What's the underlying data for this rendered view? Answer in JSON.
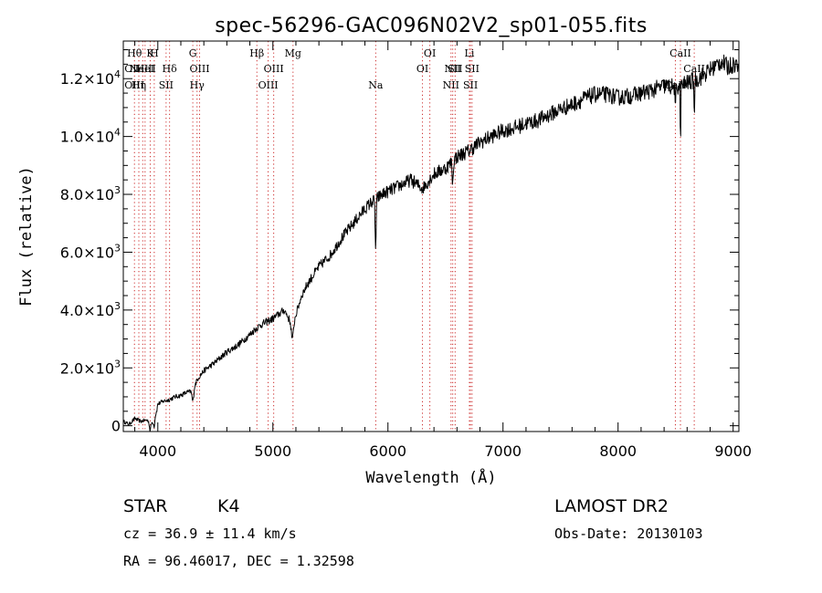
{
  "chart_data": {
    "type": "line",
    "title": "spec-56296-GAC096N02V2_sp01-055.fits",
    "xlabel": "Wavelength (Å)",
    "ylabel": "Flux (relative)",
    "xlim": [
      3700,
      9050
    ],
    "ylim": [
      -200,
      13300
    ],
    "x_ticks": [
      {
        "value": 4000,
        "label": "4000"
      },
      {
        "value": 5000,
        "label": "5000"
      },
      {
        "value": 6000,
        "label": "6000"
      },
      {
        "value": 7000,
        "label": "7000"
      },
      {
        "value": 8000,
        "label": "8000"
      },
      {
        "value": 9000,
        "label": "9000"
      }
    ],
    "y_ticks": [
      {
        "value": 0,
        "mant": "0",
        "exp": ""
      },
      {
        "value": 2000,
        "mant": "2.0×10",
        "exp": "3"
      },
      {
        "value": 4000,
        "mant": "4.0×10",
        "exp": "3"
      },
      {
        "value": 6000,
        "mant": "6.0×10",
        "exp": "3"
      },
      {
        "value": 8000,
        "mant": "8.0×10",
        "exp": "3"
      },
      {
        "value": 10000,
        "mant": "1.0×10",
        "exp": "4"
      },
      {
        "value": 12000,
        "mant": "1.2×10",
        "exp": "4"
      }
    ],
    "grid": false,
    "spectrum_anchors": [
      [
        3700,
        150
      ],
      [
        3750,
        50
      ],
      [
        3800,
        250
      ],
      [
        3850,
        150
      ],
      [
        3900,
        200
      ],
      [
        3950,
        100
      ],
      [
        3990,
        500
      ],
      [
        4000,
        750
      ],
      [
        4050,
        850
      ],
      [
        4100,
        900
      ],
      [
        4150,
        1000
      ],
      [
        4200,
        1050
      ],
      [
        4250,
        1150
      ],
      [
        4300,
        1200
      ],
      [
        4350,
        1650
      ],
      [
        4400,
        1900
      ],
      [
        4500,
        2200
      ],
      [
        4600,
        2550
      ],
      [
        4700,
        2800
      ],
      [
        4800,
        3150
      ],
      [
        4850,
        3350
      ],
      [
        4900,
        3500
      ],
      [
        5000,
        3700
      ],
      [
        5100,
        4000
      ],
      [
        5170,
        3450
      ],
      [
        5250,
        4500
      ],
      [
        5300,
        4900
      ],
      [
        5400,
        5500
      ],
      [
        5500,
        5900
      ],
      [
        5600,
        6500
      ],
      [
        5700,
        7000
      ],
      [
        5800,
        7500
      ],
      [
        5850,
        7700
      ],
      [
        5950,
        8000
      ],
      [
        6000,
        8100
      ],
      [
        6100,
        8300
      ],
      [
        6200,
        8500
      ],
      [
        6300,
        8200
      ],
      [
        6400,
        8700
      ],
      [
        6500,
        8900
      ],
      [
        6600,
        9300
      ],
      [
        6700,
        9500
      ],
      [
        6800,
        9800
      ],
      [
        6900,
        10000
      ],
      [
        7000,
        10200
      ],
      [
        7100,
        10300
      ],
      [
        7200,
        10450
      ],
      [
        7300,
        10550
      ],
      [
        7400,
        10750
      ],
      [
        7500,
        10950
      ],
      [
        7600,
        11100
      ],
      [
        7700,
        11300
      ],
      [
        7800,
        11450
      ],
      [
        7900,
        11450
      ],
      [
        8000,
        11350
      ],
      [
        8100,
        11400
      ],
      [
        8200,
        11500
      ],
      [
        8300,
        11600
      ],
      [
        8400,
        11750
      ],
      [
        8500,
        11700
      ],
      [
        8600,
        11850
      ],
      [
        8700,
        12000
      ],
      [
        8800,
        12300
      ],
      [
        8900,
        12600
      ],
      [
        8950,
        12400
      ],
      [
        9000,
        12500
      ],
      [
        9050,
        12500
      ]
    ],
    "absorption_dips": [
      [
        3933,
        300,
        8
      ],
      [
        3968,
        300,
        8
      ],
      [
        4305,
        400,
        10
      ],
      [
        5170,
        500,
        12
      ],
      [
        5893,
        1700,
        6
      ],
      [
        6563,
        800,
        6
      ],
      [
        8498,
        1000,
        4
      ],
      [
        8542,
        1900,
        4
      ],
      [
        8662,
        1200,
        4
      ]
    ],
    "line_markers": [
      {
        "x": 3797,
        "labels": [
          "Hθ",
          "OIII",
          "OIII"
        ],
        "rows": [
          0,
          1,
          2
        ]
      },
      {
        "x": 3835,
        "labels": [
          "Hη"
        ],
        "rows": [
          2
        ]
      },
      {
        "x": 3869,
        "labels": [
          "NeIII"
        ],
        "rows": [
          1
        ]
      },
      {
        "x": 3889,
        "labels": [
          "HeI"
        ],
        "rows": [
          1
        ]
      },
      {
        "x": 3934,
        "labels": [
          "K"
        ],
        "rows": [
          0
        ]
      },
      {
        "x": 3969,
        "labels": [
          "H"
        ],
        "rows": [
          0
        ]
      },
      {
        "x": 4072,
        "labels": [
          "SII"
        ],
        "rows": [
          2
        ]
      },
      {
        "x": 4102,
        "labels": [
          "Hδ"
        ],
        "rows": [
          1
        ]
      },
      {
        "x": 4304,
        "labels": [
          "G"
        ],
        "rows": [
          0
        ]
      },
      {
        "x": 4341,
        "labels": [
          "Hγ"
        ],
        "rows": [
          2
        ]
      },
      {
        "x": 4363,
        "labels": [
          "OIII"
        ],
        "rows": [
          1
        ]
      },
      {
        "x": 4861,
        "labels": [
          "Hβ"
        ],
        "rows": [
          0
        ]
      },
      {
        "x": 4959,
        "labels": [
          "OIII"
        ],
        "rows": [
          2
        ]
      },
      {
        "x": 5007,
        "labels": [
          "OIII"
        ],
        "rows": [
          1
        ]
      },
      {
        "x": 5175,
        "labels": [
          "Mg"
        ],
        "rows": [
          0
        ]
      },
      {
        "x": 5894,
        "labels": [
          "Na"
        ],
        "rows": [
          2
        ]
      },
      {
        "x": 6300,
        "labels": [
          "OI"
        ],
        "rows": [
          1
        ]
      },
      {
        "x": 6364,
        "labels": [
          "OI"
        ],
        "rows": [
          0
        ]
      },
      {
        "x": 6548,
        "labels": [
          "NII"
        ],
        "rows": [
          2
        ]
      },
      {
        "x": 6563,
        "labels": [
          "NII"
        ],
        "rows": [
          1
        ]
      },
      {
        "x": 6584,
        "labels": [
          "SII"
        ],
        "rows": [
          1
        ]
      },
      {
        "x": 6708,
        "labels": [
          "Li"
        ],
        "rows": [
          0
        ]
      },
      {
        "x": 6717,
        "labels": [
          "SII"
        ],
        "rows": [
          2
        ]
      },
      {
        "x": 6731,
        "labels": [
          "SII"
        ],
        "rows": [
          1
        ]
      },
      {
        "x": 8498,
        "labels": [
          "CaII"
        ],
        "rows": [
          2
        ]
      },
      {
        "x": 8542,
        "labels": [
          "CaII"
        ],
        "rows": [
          0
        ]
      },
      {
        "x": 8662,
        "labels": [
          "CaII"
        ],
        "rows": [
          1
        ]
      }
    ]
  },
  "info": {
    "class_label": "STAR",
    "subclass": "K4",
    "cz_text": "cz = 36.9 ± 11.4 km/s",
    "radec_text": "RA =  96.46017, DEC =   1.32598",
    "survey": "LAMOST DR2",
    "obs_date": "Obs-Date: 20130103"
  }
}
